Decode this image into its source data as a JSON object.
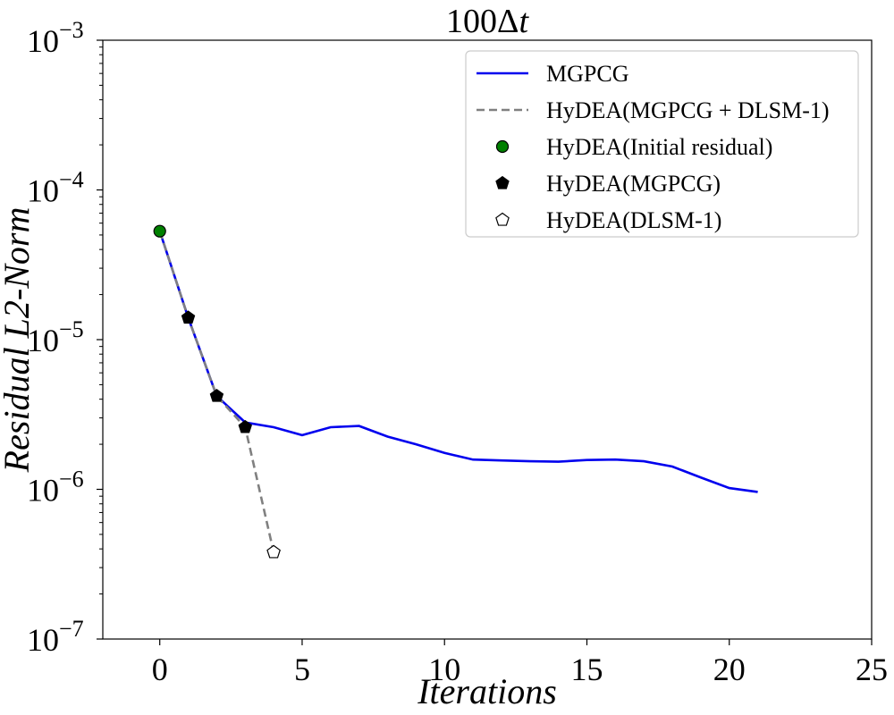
{
  "chart_data": {
    "type": "line",
    "title": "100Δt",
    "title_parts": {
      "prefix": "100Δ",
      "var": "t"
    },
    "xlabel": "Iterations",
    "ylabel": "Residual L2-Norm",
    "yscale": "log",
    "xlim": [
      -2,
      25
    ],
    "ylim_exp": [
      -7,
      -3
    ],
    "xticks": [
      "0",
      "5",
      "10",
      "15",
      "20",
      "25"
    ],
    "xtick_values": [
      0,
      5,
      10,
      15,
      20,
      25
    ],
    "yticks": [
      {
        "base": "10",
        "exp": "−7",
        "value": -7
      },
      {
        "base": "10",
        "exp": "−6",
        "value": -6
      },
      {
        "base": "10",
        "exp": "−5",
        "value": -5
      },
      {
        "base": "10",
        "exp": "−4",
        "value": -4
      },
      {
        "base": "10",
        "exp": "−3",
        "value": -3
      }
    ],
    "legend_position": "top-right",
    "series": [
      {
        "name": "MGPCG",
        "style": "solid-line",
        "color": "#0000ee",
        "x": [
          0,
          1,
          2,
          3,
          4,
          5,
          6,
          7,
          8,
          9,
          10,
          11,
          12,
          13,
          14,
          15,
          16,
          17,
          18,
          19,
          20,
          21
        ],
        "y": [
          5.3e-05,
          1.4e-05,
          4.2e-06,
          2.8e-06,
          2.6e-06,
          2.3e-06,
          2.6e-06,
          2.65e-06,
          2.25e-06,
          2e-06,
          1.75e-06,
          1.58e-06,
          1.56e-06,
          1.54e-06,
          1.53e-06,
          1.57e-06,
          1.58e-06,
          1.54e-06,
          1.42e-06,
          1.2e-06,
          1.02e-06,
          9.6e-07
        ]
      },
      {
        "name": "HyDEA(MGPCG + DLSM-1)",
        "style": "dashed-line",
        "color": "#808080",
        "x": [
          0,
          1,
          2,
          3,
          4
        ],
        "y": [
          5.3e-05,
          1.4e-05,
          4.2e-06,
          2.6e-06,
          3.8e-07
        ]
      },
      {
        "name": "HyDEA(Initial residual)",
        "style": "circle-marker",
        "color": "#008000",
        "x": [
          0
        ],
        "y": [
          5.3e-05
        ]
      },
      {
        "name": "HyDEA(MGPCG)",
        "style": "filled-pentagon-marker",
        "color": "#000000",
        "x": [
          1,
          2,
          3
        ],
        "y": [
          1.4e-05,
          4.2e-06,
          2.6e-06
        ]
      },
      {
        "name": "HyDEA(DLSM-1)",
        "style": "open-pentagon-marker",
        "color": "#ffffff",
        "x": [
          4
        ],
        "y": [
          3.8e-07
        ]
      }
    ]
  }
}
